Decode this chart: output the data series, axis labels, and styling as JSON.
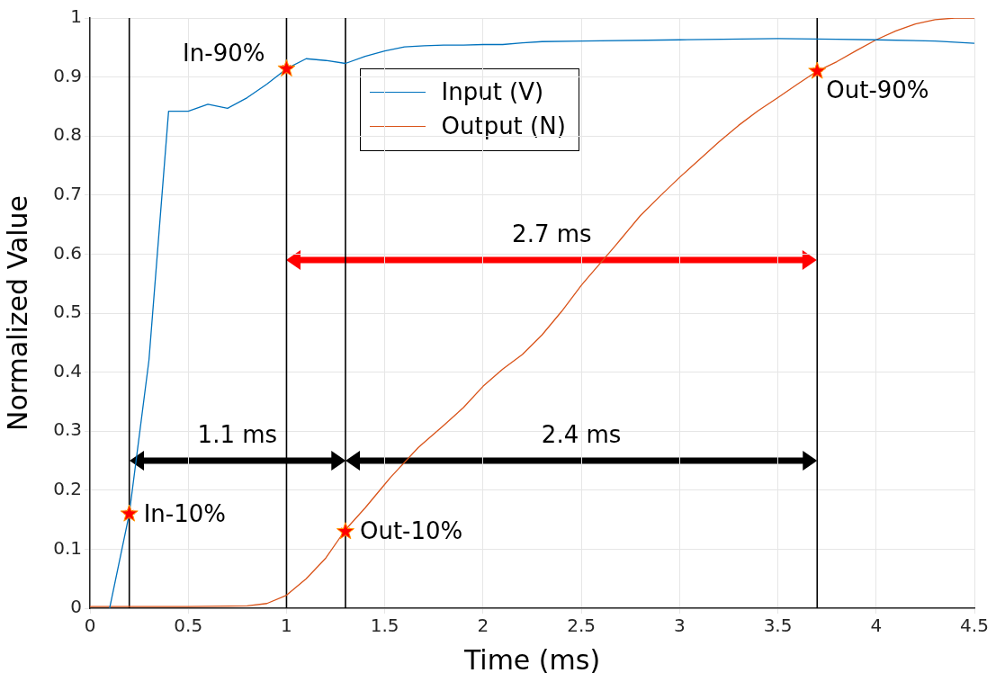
{
  "chart_data": {
    "type": "line",
    "xlabel": "Time (ms)",
    "ylabel": "Normalized Value",
    "xlim": [
      0,
      4.5
    ],
    "xticks": [
      0,
      0.5,
      1,
      1.5,
      2,
      2.5,
      3,
      3.5,
      4,
      4.5
    ],
    "ylim": [
      0,
      1
    ],
    "yticks": [
      0,
      0.1,
      0.2,
      0.3,
      0.4,
      0.5,
      0.6,
      0.7,
      0.8,
      0.9,
      1
    ],
    "grid": true,
    "legend": "top",
    "line_style": "solid",
    "marker": "none",
    "series": [
      {
        "name": "Input (V)",
        "color": "#0072bd",
        "x": [
          0.1,
          0.2,
          0.3,
          0.4,
          0.5,
          0.6,
          0.7,
          0.8,
          0.9,
          1.0,
          1.1,
          1.2,
          1.3,
          1.4,
          1.5,
          1.6,
          1.7,
          1.8,
          1.9,
          2.0,
          2.1,
          2.2,
          2.3,
          2.5,
          3.0,
          3.5,
          3.8,
          4.0,
          4.3,
          4.5
        ],
        "values": [
          0,
          0.16,
          0.42,
          0.842,
          0.842,
          0.854,
          0.847,
          0.865,
          0.888,
          0.914,
          0.931,
          0.928,
          0.923,
          0.935,
          0.944,
          0.951,
          0.953,
          0.954,
          0.954,
          0.955,
          0.955,
          0.958,
          0.96,
          0.961,
          0.963,
          0.965,
          0.964,
          0.963,
          0.961,
          0.957
        ]
      },
      {
        "name": "Output (N)",
        "color": "#d95319",
        "x": [
          0,
          0.5,
          0.8,
          0.9,
          1.0,
          1.1,
          1.2,
          1.3,
          1.4,
          1.5,
          1.53,
          1.67,
          1.7,
          1.8,
          1.9,
          2.0,
          2.1,
          2.2,
          2.3,
          2.4,
          2.5,
          2.53,
          2.67,
          2.7,
          2.8,
          2.9,
          3.0,
          3.1,
          3.2,
          3.3,
          3.4,
          3.5,
          3.6,
          3.7,
          3.8,
          3.9,
          4.0,
          4.1,
          4.2,
          4.3,
          4.4,
          4.5
        ],
        "values": [
          0.003,
          0.003,
          0.004,
          0.008,
          0.022,
          0.05,
          0.085,
          0.133,
          0.17,
          0.21,
          0.222,
          0.272,
          0.281,
          0.31,
          0.34,
          0.376,
          0.405,
          0.43,
          0.463,
          0.503,
          0.547,
          0.559,
          0.613,
          0.625,
          0.665,
          0.698,
          0.73,
          0.76,
          0.79,
          0.818,
          0.843,
          0.865,
          0.888,
          0.91,
          0.926,
          0.945,
          0.963,
          0.978,
          0.99,
          0.997,
          1.0,
          1.0
        ]
      },
      {
        "type": "scatter",
        "marker": "star",
        "color": "#ff0000",
        "x": [
          0.2,
          1.0,
          1.3,
          3.7
        ],
        "values": [
          0.16,
          0.914,
          0.13,
          0.91
        ]
      }
    ],
    "ref_lines": [
      {
        "axis": "x",
        "value": 0.2,
        "color": "#000000"
      },
      {
        "axis": "x",
        "value": 1.0,
        "color": "#000000"
      },
      {
        "axis": "x",
        "value": 1.3,
        "color": "#000000"
      },
      {
        "axis": "x",
        "value": 3.7,
        "color": "#000000"
      }
    ],
    "annotations": [
      {
        "text": "In-10%",
        "x": 0.2,
        "y": 0.16
      },
      {
        "text": "In-90%",
        "x": 1.0,
        "y": 0.914
      },
      {
        "text": "Out-10%",
        "x": 1.3,
        "y": 0.13
      },
      {
        "text": "Out-90%",
        "x": 3.7,
        "y": 0.91
      },
      "1.1 ms",
      "2.4 ms",
      "2.7 ms"
    ]
  }
}
